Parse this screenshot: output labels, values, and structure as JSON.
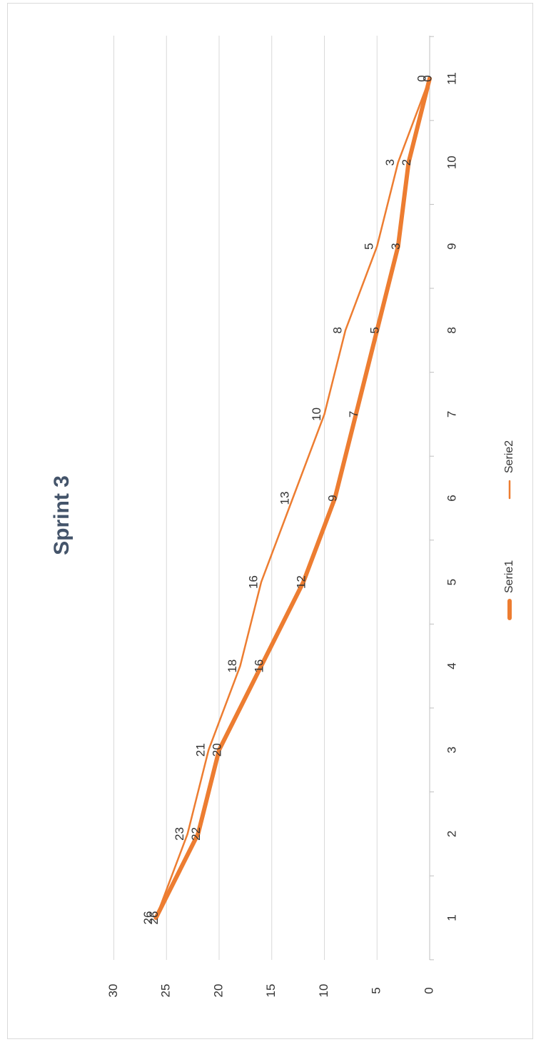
{
  "chart_data": {
    "type": "line",
    "title": "Sprint 3",
    "categories": [
      "1",
      "2",
      "3",
      "4",
      "5",
      "6",
      "7",
      "8",
      "9",
      "10",
      "11"
    ],
    "series": [
      {
        "name": "Serie1",
        "values": [
          26,
          22,
          20,
          16,
          12,
          9,
          7,
          5,
          3,
          2,
          0
        ],
        "color": "#ed7d31",
        "width": "thick"
      },
      {
        "name": "Serie2",
        "values": [
          26,
          23,
          21,
          18,
          16,
          13,
          10,
          8,
          5,
          3,
          0
        ],
        "color": "#ed7d31",
        "width": "thin"
      }
    ],
    "ylim": [
      0,
      30
    ],
    "yticks": [
      "0",
      "5",
      "10",
      "15",
      "20",
      "25",
      "30"
    ],
    "grid": true,
    "legend": "bottom",
    "orientation": "rotated 90° clockwise"
  }
}
